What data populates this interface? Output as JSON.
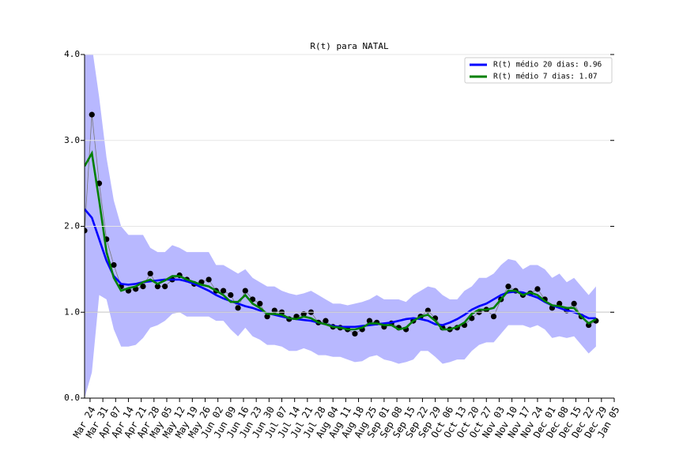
{
  "chart_data": {
    "type": "line",
    "title": "R(t) para NATAL",
    "x": [
      "Mar 21",
      "Mar 25",
      "Mar 29",
      "Apr 02",
      "Apr 06",
      "Apr 10",
      "Apr 14",
      "Apr 18",
      "Apr 22",
      "Apr 26",
      "Apr 30",
      "May 04",
      "May 08",
      "May 12",
      "May 16",
      "May 20",
      "May 24",
      "May 28",
      "Jun 01",
      "Jun 05",
      "Jun 09",
      "Jun 13",
      "Jun 17",
      "Jun 21",
      "Jun 25",
      "Jun 29",
      "Jul 03",
      "Jul 07",
      "Jul 11",
      "Jul 15",
      "Jul 19",
      "Jul 23",
      "Jul 27",
      "Jul 31",
      "Aug 04",
      "Aug 08",
      "Aug 12",
      "Aug 16",
      "Aug 20",
      "Aug 24",
      "Aug 28",
      "Sep 01",
      "Sep 05",
      "Sep 09",
      "Sep 13",
      "Sep 17",
      "Sep 21",
      "Sep 25",
      "Sep 29",
      "Oct 03",
      "Oct 07",
      "Oct 11",
      "Oct 15",
      "Oct 19",
      "Oct 23",
      "Oct 27",
      "Oct 31",
      "Nov 04",
      "Nov 08",
      "Nov 12",
      "Nov 16",
      "Nov 20",
      "Nov 24",
      "Nov 28",
      "Dec 02",
      "Dec 06",
      "Dec 10",
      "Dec 14",
      "Dec 18",
      "Dec 22",
      "Dec 26"
    ],
    "band": {
      "color": "#b8b8ff",
      "upper": [
        4.3,
        4.1,
        3.5,
        2.8,
        2.3,
        2.0,
        1.9,
        1.9,
        1.9,
        1.75,
        1.7,
        1.7,
        1.78,
        1.75,
        1.7,
        1.7,
        1.7,
        1.7,
        1.55,
        1.55,
        1.5,
        1.45,
        1.5,
        1.4,
        1.35,
        1.3,
        1.3,
        1.25,
        1.22,
        1.2,
        1.22,
        1.25,
        1.2,
        1.15,
        1.1,
        1.1,
        1.08,
        1.1,
        1.12,
        1.15,
        1.2,
        1.15,
        1.15,
        1.15,
        1.12,
        1.2,
        1.25,
        1.3,
        1.28,
        1.2,
        1.15,
        1.15,
        1.25,
        1.3,
        1.4,
        1.4,
        1.45,
        1.55,
        1.62,
        1.6,
        1.5,
        1.55,
        1.55,
        1.5,
        1.4,
        1.45,
        1.35,
        1.4,
        1.3,
        1.2,
        1.3
      ],
      "lower": [
        0.0,
        0.3,
        1.2,
        1.15,
        0.8,
        0.6,
        0.6,
        0.62,
        0.7,
        0.82,
        0.85,
        0.9,
        0.98,
        1.0,
        0.95,
        0.95,
        0.95,
        0.95,
        0.9,
        0.9,
        0.8,
        0.72,
        0.82,
        0.72,
        0.68,
        0.62,
        0.62,
        0.6,
        0.55,
        0.55,
        0.58,
        0.55,
        0.5,
        0.5,
        0.48,
        0.48,
        0.45,
        0.42,
        0.43,
        0.48,
        0.5,
        0.45,
        0.43,
        0.4,
        0.42,
        0.45,
        0.55,
        0.55,
        0.48,
        0.4,
        0.42,
        0.45,
        0.45,
        0.55,
        0.62,
        0.65,
        0.65,
        0.75,
        0.85,
        0.85,
        0.85,
        0.82,
        0.85,
        0.8,
        0.7,
        0.72,
        0.7,
        0.72,
        0.62,
        0.52,
        0.6
      ]
    },
    "points": {
      "color": "#000000",
      "values": [
        1.95,
        3.3,
        2.5,
        1.85,
        1.55,
        1.3,
        1.25,
        1.27,
        1.3,
        1.45,
        1.3,
        1.3,
        1.38,
        1.43,
        1.38,
        1.33,
        1.35,
        1.38,
        1.25,
        1.25,
        1.2,
        1.05,
        1.25,
        1.15,
        1.1,
        0.95,
        1.02,
        1.0,
        0.92,
        0.95,
        0.98,
        1.0,
        0.88,
        0.9,
        0.83,
        0.82,
        0.8,
        0.75,
        0.8,
        0.9,
        0.88,
        0.83,
        0.87,
        0.82,
        0.8,
        0.9,
        0.95,
        1.02,
        0.93,
        0.82,
        0.8,
        0.82,
        0.85,
        0.93,
        1.0,
        1.03,
        0.95,
        1.15,
        1.3,
        1.25,
        1.2,
        1.22,
        1.27,
        1.15,
        1.05,
        1.1,
        1.02,
        1.1,
        0.95,
        0.85,
        0.9
      ]
    },
    "series": [
      {
        "name": "R(t) médio 20 dias: 0.96",
        "color": "#0000ff",
        "values": [
          2.2,
          2.1,
          1.85,
          1.6,
          1.42,
          1.33,
          1.32,
          1.33,
          1.35,
          1.36,
          1.37,
          1.38,
          1.38,
          1.38,
          1.36,
          1.33,
          1.29,
          1.25,
          1.2,
          1.16,
          1.13,
          1.1,
          1.07,
          1.05,
          1.02,
          0.99,
          0.97,
          0.95,
          0.93,
          0.92,
          0.91,
          0.9,
          0.88,
          0.86,
          0.84,
          0.83,
          0.83,
          0.83,
          0.84,
          0.85,
          0.86,
          0.87,
          0.88,
          0.9,
          0.92,
          0.93,
          0.92,
          0.9,
          0.86,
          0.85,
          0.88,
          0.92,
          0.97,
          1.03,
          1.07,
          1.1,
          1.15,
          1.2,
          1.23,
          1.24,
          1.23,
          1.2,
          1.17,
          1.12,
          1.08,
          1.05,
          1.02,
          1.0,
          0.97,
          0.93,
          0.93
        ]
      },
      {
        "name": "R(t) médio 7 dias: 1.07",
        "color": "#008000",
        "values": [
          2.7,
          2.85,
          2.3,
          1.7,
          1.4,
          1.25,
          1.28,
          1.3,
          1.35,
          1.38,
          1.33,
          1.37,
          1.42,
          1.42,
          1.38,
          1.35,
          1.32,
          1.3,
          1.25,
          1.2,
          1.12,
          1.12,
          1.2,
          1.1,
          1.05,
          0.98,
          0.98,
          0.97,
          0.93,
          0.92,
          0.95,
          0.93,
          0.88,
          0.86,
          0.83,
          0.82,
          0.8,
          0.8,
          0.82,
          0.87,
          0.87,
          0.85,
          0.85,
          0.8,
          0.82,
          0.9,
          0.95,
          0.97,
          0.9,
          0.8,
          0.8,
          0.83,
          0.88,
          0.98,
          1.03,
          1.03,
          1.05,
          1.15,
          1.25,
          1.25,
          1.2,
          1.23,
          1.2,
          1.13,
          1.08,
          1.07,
          1.05,
          1.05,
          0.95,
          0.87,
          0.92
        ]
      }
    ],
    "reference_line": 1,
    "xlim": [
      "Mar 21",
      "Jan 05"
    ],
    "xticks": [
      "Mar 24",
      "Mar 31",
      "Apr 07",
      "Apr 14",
      "Apr 21",
      "Apr 28",
      "May 05",
      "May 12",
      "May 19",
      "May 26",
      "Jun 02",
      "Jun 09",
      "Jun 16",
      "Jun 23",
      "Jun 30",
      "Jul 07",
      "Jul 14",
      "Jul 21",
      "Jul 28",
      "Aug 04",
      "Aug 11",
      "Aug 18",
      "Aug 25",
      "Sep 01",
      "Sep 08",
      "Sep 15",
      "Sep 22",
      "Sep 29",
      "Oct 06",
      "Oct 13",
      "Oct 20",
      "Oct 27",
      "Nov 03",
      "Nov 10",
      "Nov 17",
      "Nov 24",
      "Dec 01",
      "Dec 08",
      "Dec 15",
      "Dec 22",
      "Dec 29",
      "Jan 05"
    ],
    "ylim": [
      0,
      4
    ],
    "yticks": [
      {
        "value": 0,
        "label": "0.0"
      },
      {
        "value": 1,
        "label": "1.0"
      },
      {
        "value": 2,
        "label": "2.0"
      },
      {
        "value": 3,
        "label": "3.0"
      },
      {
        "value": 4,
        "label": "4.0"
      }
    ],
    "grid": true,
    "legend": "upper right"
  }
}
